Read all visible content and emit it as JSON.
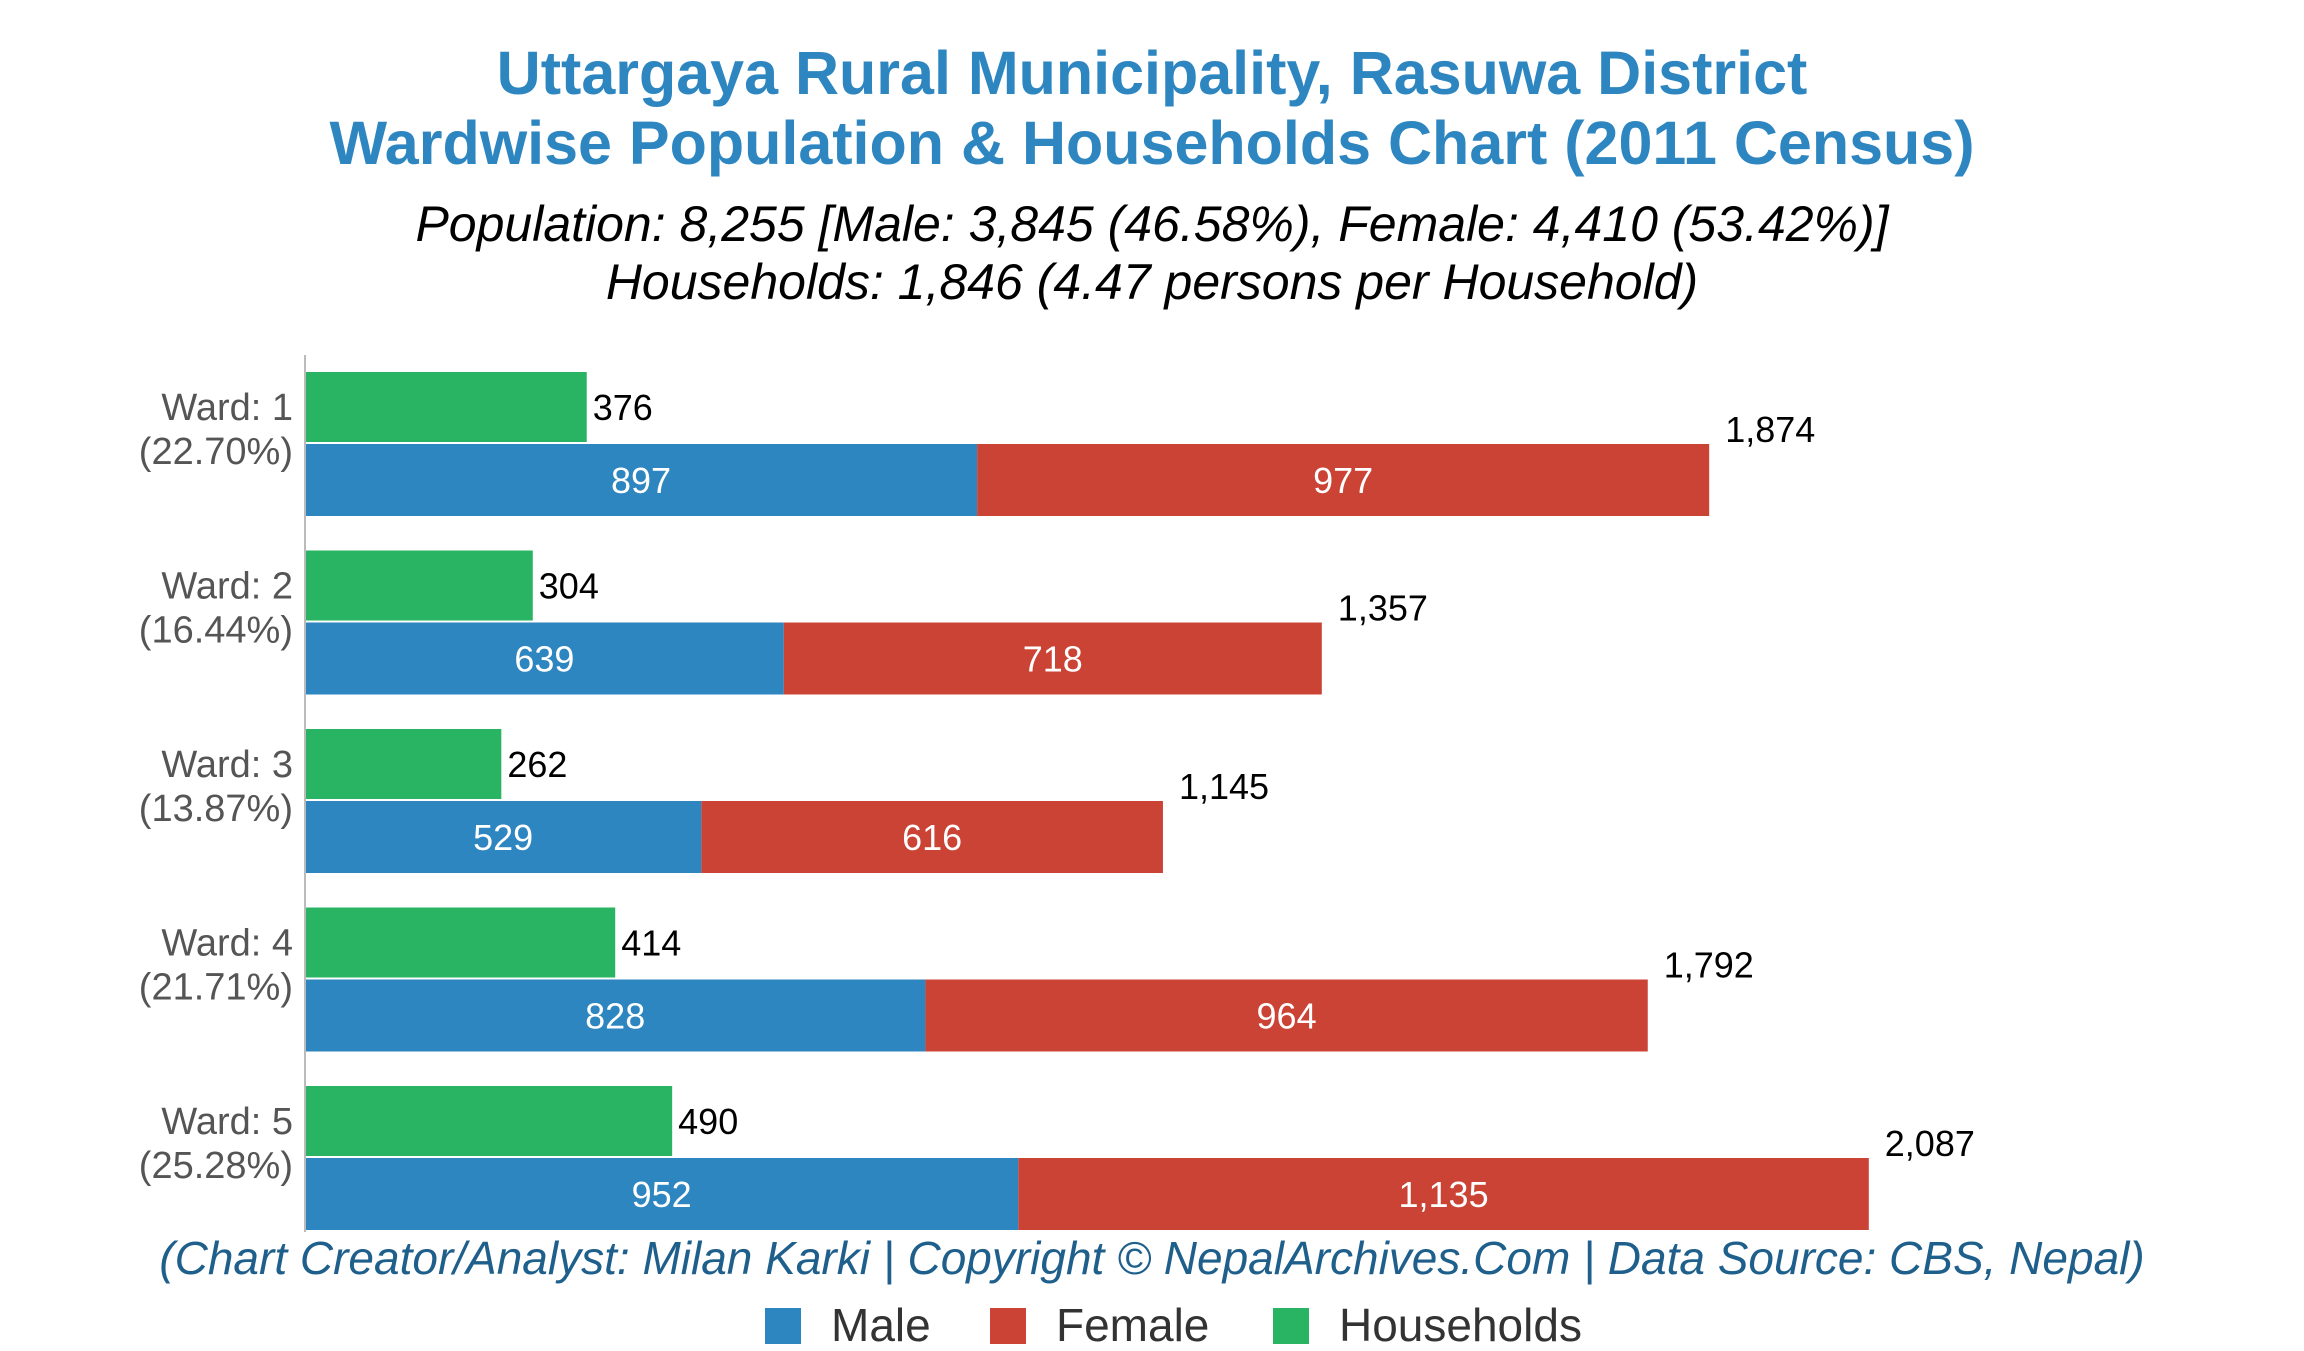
{
  "title_line1": "Uttargaya Rural Municipality, Rasuwa District",
  "title_line2": "Wardwise Population & Households Chart (2011 Census)",
  "subtitle_line1": "Population: 8,255 [Male: 3,845 (46.58%), Female: 4,410 (53.42%)]",
  "subtitle_line2": "Households: 1,846 (4.47 persons per Household)",
  "footer": "(Chart Creator/Analyst: Milan Karki | Copyright © NepalArchives.Com | Data Source: CBS, Nepal)",
  "legend": [
    {
      "label": "Male",
      "color": "#2e86c1"
    },
    {
      "label": "Female",
      "color": "#cb4335"
    },
    {
      "label": "Households",
      "color": "#28b463"
    }
  ],
  "chart_data": {
    "type": "bar",
    "orientation": "horizontal",
    "categories": [
      "Ward: 1",
      "Ward: 2",
      "Ward: 3",
      "Ward: 4",
      "Ward: 5"
    ],
    "category_percents": [
      "(22.70%)",
      "(16.44%)",
      "(13.87%)",
      "(21.71%)",
      "(25.28%)"
    ],
    "series": [
      {
        "name": "Male",
        "values": [
          897,
          639,
          529,
          828,
          952
        ],
        "labels": [
          "897",
          "639",
          "529",
          "828",
          "952"
        ]
      },
      {
        "name": "Female",
        "values": [
          977,
          718,
          616,
          964,
          1135
        ],
        "labels": [
          "977",
          "718",
          "616",
          "964",
          "1,135"
        ]
      },
      {
        "name": "Households",
        "values": [
          376,
          304,
          262,
          414,
          490
        ],
        "labels": [
          "376",
          "304",
          "262",
          "414",
          "490"
        ]
      }
    ],
    "totals": [
      1874,
      1357,
      1145,
      1792,
      2087
    ],
    "total_labels": [
      "1,874",
      "1,357",
      "1,145",
      "1,792",
      "2,087"
    ],
    "stacked": [
      "Male",
      "Female"
    ],
    "grid": false,
    "legend_position": "bottom-center",
    "colors": {
      "male": "#2e86c1",
      "female": "#cb4335",
      "households": "#28b463"
    }
  }
}
